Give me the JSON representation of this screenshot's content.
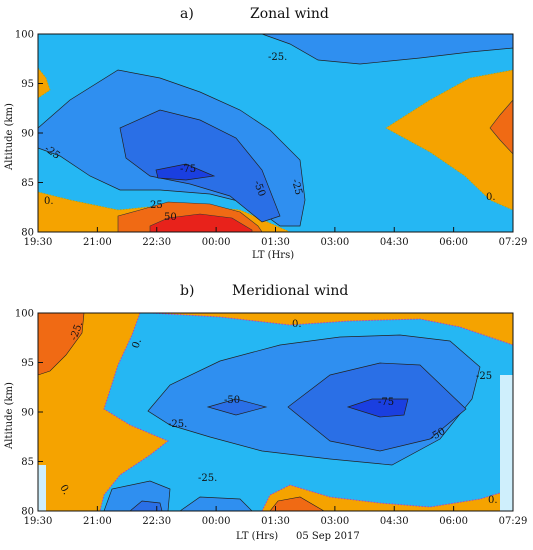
{
  "chart_data": [
    {
      "type": "contour",
      "panel_letter": "a)",
      "title": "Zonal wind",
      "xlabel": "LT (Hrs)",
      "ylabel": "Altitude (km)",
      "date": "",
      "x_ticks": [
        "19:30",
        "21:00",
        "22:30",
        "00:00",
        "01:30",
        "03:00",
        "04:30",
        "06:00",
        "07:29"
      ],
      "y_ticks": [
        "80",
        "85",
        "90",
        "95",
        "100"
      ],
      "ylim": [
        80,
        100
      ],
      "levels": [
        -75,
        -50,
        -25,
        0,
        25,
        50
      ],
      "colors": {
        "below_-75": "#1a3fe0",
        "-75_to_-50": "#2a6fe6",
        "-50_to_-25": "#2f8ff0",
        "-25_to_0": "#25b7f3",
        "0_to_25": "#f5a300",
        "25_to_50": "#f06a14",
        "above_50": "#e8221b"
      },
      "contour_labels": [
        {
          "text": "-25.",
          "x_hrs": 10.75,
          "y_km": 97
        },
        {
          "text": "-25",
          "x_hrs": 0.6,
          "y_km": 88
        },
        {
          "text": "-75",
          "x_hrs": 3.8,
          "y_km": 86
        },
        {
          "text": "-50",
          "x_hrs": 4.5,
          "y_km": 85
        },
        {
          "text": "-25",
          "x_hrs": 5.4,
          "y_km": 85
        },
        {
          "text": "0.",
          "x_hrs": 0.3,
          "y_km": 82
        },
        {
          "text": "25",
          "x_hrs": 3.2,
          "y_km": 82
        },
        {
          "text": "50",
          "x_hrs": 3.6,
          "y_km": 81
        },
        {
          "text": "0.",
          "x_hrs": 11.3,
          "y_km": 83
        }
      ]
    },
    {
      "type": "contour",
      "panel_letter": "b)",
      "title": "Meridional wind",
      "xlabel": "LT (Hrs)",
      "ylabel": "Altitude (km)",
      "date": "05 Sep 2017",
      "x_ticks": [
        "19:30",
        "21:00",
        "22:30",
        "00:00",
        "01:30",
        "03:00",
        "04:30",
        "06:00",
        "07:29"
      ],
      "y_ticks": [
        "80",
        "85",
        "90",
        "95",
        "100"
      ],
      "ylim": [
        80,
        100
      ],
      "levels": [
        -75,
        -50,
        -25,
        0,
        25
      ],
      "colors": {
        "below_-75": "#1a3fe0",
        "-75_to_-50": "#2a6fe6",
        "-50_to_-25": "#2f8ff0",
        "-25_to_0": "#25b7f3",
        "0_to_25": "#f5a300",
        "above_25": "#f06a14"
      },
      "contour_labels": [
        {
          "text": "-25.",
          "x_hrs": 0.8,
          "y_km": 97
        },
        {
          "text": "0.",
          "x_hrs": 2.4,
          "y_km": 95
        },
        {
          "text": "0.",
          "x_hrs": 6.2,
          "y_km": 98
        },
        {
          "text": "-50",
          "x_hrs": 4.0,
          "y_km": 91
        },
        {
          "text": "-25.",
          "x_hrs": 3.2,
          "y_km": 89
        },
        {
          "text": "-75",
          "x_hrs": 8.6,
          "y_km": 91
        },
        {
          "text": "-25",
          "x_hrs": 10.75,
          "y_km": 93
        },
        {
          "text": "-50",
          "x_hrs": 9.9,
          "y_km": 87
        },
        {
          "text": "-25.",
          "x_hrs": 4.1,
          "y_km": 84
        },
        {
          "text": "0.",
          "x_hrs": 0.7,
          "y_km": 82
        },
        {
          "text": "0.",
          "x_hrs": 11.0,
          "y_km": 82
        }
      ]
    }
  ]
}
